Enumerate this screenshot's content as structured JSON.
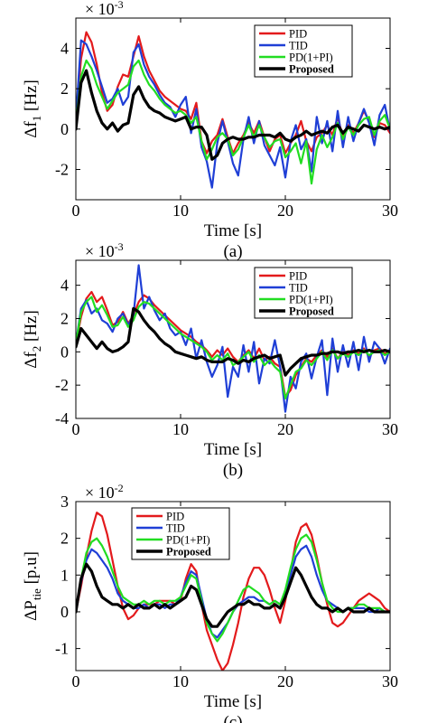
{
  "colors": {
    "PID": "#e31a1c",
    "TID": "#1f3fd6",
    "PD(1+PI)": "#22dd22",
    "Proposed": "#000000"
  },
  "chart_data": [
    {
      "type": "line",
      "caption": "(a)",
      "xlabel": "Time [s]",
      "ylabel_main": "Δf",
      "ylabel_sub": "1",
      "ylabel_unit": " [Hz]",
      "multiplier_base": "× 10",
      "multiplier_exp": "-3",
      "xlim": [
        0,
        30
      ],
      "ylim": [
        -3.5,
        5.5
      ],
      "xticks": [
        0,
        10,
        20,
        30
      ],
      "yticks": [
        -2,
        0,
        2,
        4
      ],
      "legend_position": "top-right",
      "x": [
        0,
        0.5,
        1,
        1.5,
        2,
        2.5,
        3,
        3.5,
        4,
        4.5,
        5,
        5.5,
        6,
        6.5,
        7,
        7.5,
        8,
        8.5,
        9,
        9.5,
        10,
        10.5,
        11,
        11.5,
        12,
        12.5,
        13,
        13.5,
        14,
        14.5,
        15,
        15.5,
        16,
        16.5,
        17,
        17.5,
        18,
        18.5,
        19,
        19.5,
        20,
        20.5,
        21,
        21.5,
        22,
        22.5,
        23,
        23.5,
        24,
        24.5,
        25,
        25.5,
        26,
        26.5,
        27,
        27.5,
        28,
        28.5,
        29,
        29.5,
        30
      ],
      "series": [
        {
          "name": "PID",
          "values": [
            0.5,
            3.5,
            4.8,
            4.3,
            3.2,
            1.8,
            0.9,
            1.2,
            2.1,
            2.7,
            2.6,
            3.6,
            4.6,
            3.6,
            2.9,
            2.4,
            1.9,
            1.6,
            1.4,
            1.2,
            1.0,
            0.9,
            0.5,
            1.3,
            -0.6,
            -1.2,
            -0.6,
            -0.3,
            0.5,
            -0.4,
            -1.2,
            -0.7,
            -0.3,
            0.3,
            -0.2,
            0.4,
            -0.4,
            -1.1,
            -0.5,
            -0.3,
            -1.2,
            -0.7,
            -0.3,
            0.4,
            -0.6,
            -1.1,
            -0.4,
            -0.2,
            0.2,
            -0.3,
            0.6,
            -0.4,
            0.2,
            -0.2,
            0.3,
            0.9,
            0.4,
            -0.4,
            0.3,
            0.2,
            -0.2
          ]
        },
        {
          "name": "TID",
          "values": [
            0.5,
            4.4,
            4.2,
            3.6,
            2.9,
            2.1,
            1.3,
            1.5,
            2.0,
            1.2,
            1.6,
            3.8,
            4.2,
            3.2,
            2.6,
            2.2,
            1.7,
            1.3,
            1.1,
            0.6,
            1.2,
            1.6,
            -0.2,
            1.0,
            -0.9,
            -1.6,
            -2.9,
            -0.7,
            0.4,
            -0.6,
            -1.7,
            -2.3,
            -0.5,
            0.6,
            -0.7,
            0.4,
            -0.8,
            -1.3,
            -1.8,
            -0.9,
            -2.4,
            -0.6,
            0.2,
            -1.0,
            -0.5,
            -2.1,
            0.6,
            -0.7,
            0.4,
            -1.1,
            0.9,
            -0.9,
            0.6,
            -0.6,
            0.3,
            1.0,
            0.3,
            -0.8,
            0.7,
            1.2,
            -0.1
          ]
        },
        {
          "name": "PD(1+PI)",
          "values": [
            0.3,
            2.6,
            3.4,
            3.0,
            2.2,
            1.6,
            1.0,
            1.4,
            1.8,
            2.0,
            2.2,
            3.1,
            3.4,
            2.7,
            2.2,
            1.9,
            1.5,
            1.2,
            1.0,
            0.8,
            0.9,
            0.7,
            0.3,
            0.6,
            -0.6,
            -1.5,
            -1.0,
            -0.4,
            -0.2,
            -0.5,
            -1.3,
            -1.0,
            -0.4,
            0.2,
            -0.4,
            0.2,
            -0.4,
            -0.9,
            -0.6,
            -0.5,
            -1.4,
            -1.1,
            -0.7,
            -1.7,
            -0.6,
            -2.7,
            -1.0,
            -0.3,
            -0.9,
            -0.4,
            0.3,
            -0.5,
            0.1,
            -0.3,
            0.2,
            0.5,
            0.6,
            -0.3,
            0.4,
            0.7,
            0.0
          ]
        },
        {
          "name": "Proposed",
          "values": [
            0.0,
            2.3,
            2.9,
            1.8,
            0.9,
            0.3,
            0.0,
            0.3,
            -0.1,
            0.2,
            0.3,
            1.7,
            2.1,
            1.5,
            1.1,
            0.9,
            0.8,
            0.6,
            0.5,
            0.4,
            0.5,
            0.6,
            0.0,
            0.1,
            0.1,
            -0.3,
            -1.5,
            -1.3,
            -0.7,
            -0.5,
            -0.4,
            -0.5,
            -0.5,
            -0.4,
            -0.4,
            -0.3,
            -0.3,
            -0.3,
            -0.4,
            -0.2,
            -0.5,
            -0.6,
            -0.4,
            -0.3,
            -0.1,
            -0.3,
            -0.2,
            -0.1,
            -0.2,
            0.1,
            0.2,
            -0.2,
            0.1,
            0.0,
            -0.1,
            0.2,
            0.1,
            0.0,
            0.1,
            0.0,
            0.1
          ]
        }
      ]
    },
    {
      "type": "line",
      "caption": "(b)",
      "xlabel": "Time [s]",
      "ylabel_main": "Δf",
      "ylabel_sub": "2",
      "ylabel_unit": " [Hz]",
      "multiplier_base": "× 10",
      "multiplier_exp": "-3",
      "xlim": [
        0,
        30
      ],
      "ylim": [
        -4,
        5.5
      ],
      "xticks": [
        0,
        10,
        20,
        30
      ],
      "yticks": [
        -4,
        -2,
        0,
        2,
        4
      ],
      "legend_position": "top-right",
      "x": [
        0,
        0.5,
        1,
        1.5,
        2,
        2.5,
        3,
        3.5,
        4,
        4.5,
        5,
        5.5,
        6,
        6.5,
        7,
        7.5,
        8,
        8.5,
        9,
        9.5,
        10,
        10.5,
        11,
        11.5,
        12,
        12.5,
        13,
        13.5,
        14,
        14.5,
        15,
        15.5,
        16,
        16.5,
        17,
        17.5,
        18,
        18.5,
        19,
        19.5,
        20,
        20.5,
        21,
        21.5,
        22,
        22.5,
        23,
        23.5,
        24,
        24.5,
        25,
        25.5,
        26,
        26.5,
        27,
        27.5,
        28,
        28.5,
        29,
        29.5,
        30
      ],
      "series": [
        {
          "name": "PID",
          "values": [
            0.5,
            2.1,
            3.2,
            3.6,
            3.0,
            3.3,
            2.5,
            1.6,
            1.8,
            2.4,
            1.7,
            2.2,
            3.0,
            3.4,
            3.2,
            2.8,
            2.5,
            2.2,
            1.9,
            1.6,
            1.3,
            1.1,
            0.9,
            0.6,
            0.4,
            0.1,
            -0.3,
            0.1,
            -0.2,
            0.2,
            -0.3,
            -0.6,
            -0.2,
            0.1,
            -0.4,
            0.2,
            -0.5,
            -0.3,
            -0.7,
            -0.9,
            -2.7,
            -2.3,
            -1.4,
            -0.9,
            -0.4,
            -0.6,
            -0.2,
            0.1,
            -0.3,
            0.2,
            -0.4,
            0.0,
            -0.2,
            0.1,
            -0.1,
            0.2,
            -0.3,
            0.1,
            0.2,
            -0.1,
            0.0
          ]
        },
        {
          "name": "TID",
          "values": [
            0.5,
            2.6,
            3.1,
            2.3,
            2.6,
            1.9,
            1.7,
            1.2,
            2.0,
            2.3,
            1.6,
            2.2,
            5.2,
            2.6,
            3.3,
            2.5,
            1.9,
            2.3,
            1.4,
            1.0,
            1.2,
            0.4,
            1.4,
            -0.4,
            0.7,
            -0.6,
            -1.5,
            -0.8,
            0.3,
            -2.7,
            -0.9,
            -1.5,
            0.4,
            -1.2,
            0.6,
            -1.9,
            -0.4,
            -0.7,
            0.7,
            -0.9,
            -3.6,
            -1.5,
            -2.2,
            -0.6,
            -0.1,
            -1.6,
            -0.3,
            0.7,
            -2.6,
            0.8,
            -1.2,
            0.4,
            -0.9,
            0.6,
            -1.1,
            0.9,
            -0.6,
            0.6,
            0.2,
            -0.7,
            0.2
          ]
        },
        {
          "name": "PD(1+PI)",
          "values": [
            0.5,
            2.4,
            3.0,
            3.3,
            2.4,
            2.8,
            2.2,
            1.5,
            1.6,
            2.1,
            1.5,
            1.9,
            2.7,
            3.0,
            2.9,
            2.6,
            2.3,
            2.0,
            1.7,
            1.4,
            1.1,
            0.9,
            0.7,
            0.5,
            0.3,
            0.0,
            -0.5,
            -0.2,
            -0.5,
            -0.1,
            -0.8,
            -0.6,
            -0.3,
            0.0,
            -0.6,
            -0.2,
            -0.8,
            -0.5,
            -0.9,
            -1.2,
            -2.8,
            -2.0,
            -1.2,
            -1.0,
            -0.5,
            -0.8,
            -0.4,
            0.0,
            -0.5,
            0.1,
            -0.4,
            -0.1,
            -0.3,
            0.0,
            -0.2,
            0.1,
            -0.2,
            0.0,
            0.1,
            -0.2,
            0.0
          ]
        },
        {
          "name": "Proposed",
          "values": [
            0.3,
            1.4,
            1.0,
            0.6,
            0.2,
            0.6,
            0.2,
            0.0,
            0.1,
            0.3,
            0.6,
            2.6,
            2.4,
            1.9,
            1.5,
            1.2,
            0.8,
            0.5,
            0.3,
            0.0,
            -0.1,
            -0.2,
            -0.3,
            -0.4,
            -0.3,
            -0.5,
            -0.6,
            -0.6,
            -0.6,
            -0.4,
            -0.5,
            -0.7,
            -0.5,
            -0.6,
            -0.4,
            -0.3,
            -0.2,
            -0.4,
            -0.3,
            -0.2,
            -1.4,
            -1.0,
            -0.7,
            -0.4,
            -0.3,
            -0.2,
            -0.2,
            -0.1,
            -0.1,
            0.0,
            0.0,
            -0.1,
            0.0,
            0.0,
            0.1,
            0.0,
            0.1,
            0.0,
            0.0,
            0.1,
            0.0
          ]
        }
      ]
    },
    {
      "type": "line",
      "caption": "(c)",
      "xlabel": "Time [s]",
      "ylabel_main": "ΔP",
      "ylabel_sub": "tie",
      "ylabel_unit": " [p.u]",
      "multiplier_base": "× 10",
      "multiplier_exp": "-2",
      "xlim": [
        0,
        30
      ],
      "ylim": [
        -1.6,
        3.0
      ],
      "xticks": [
        0,
        10,
        20,
        30
      ],
      "yticks": [
        -1,
        0,
        1,
        2,
        3
      ],
      "legend_position": "top-center",
      "x": [
        0,
        0.5,
        1,
        1.5,
        2,
        2.5,
        3,
        3.5,
        4,
        4.5,
        5,
        5.5,
        6,
        6.5,
        7,
        7.5,
        8,
        8.5,
        9,
        9.5,
        10,
        10.5,
        11,
        11.5,
        12,
        12.5,
        13,
        13.5,
        14,
        14.5,
        15,
        15.5,
        16,
        16.5,
        17,
        17.5,
        18,
        18.5,
        19,
        19.5,
        20,
        20.5,
        21,
        21.5,
        22,
        22.5,
        23,
        23.5,
        24,
        24.5,
        25,
        25.5,
        26,
        26.5,
        27,
        27.5,
        28,
        28.5,
        29,
        29.5,
        30
      ],
      "series": [
        {
          "name": "PID",
          "values": [
            0.0,
            0.7,
            1.5,
            2.2,
            2.7,
            2.6,
            2.1,
            1.4,
            0.7,
            0.1,
            -0.2,
            -0.1,
            0.1,
            0.2,
            0.2,
            0.2,
            0.3,
            0.3,
            0.3,
            0.2,
            0.3,
            0.9,
            1.3,
            1.1,
            0.2,
            -0.5,
            -0.9,
            -1.3,
            -1.6,
            -1.4,
            -0.9,
            -0.3,
            0.4,
            0.9,
            1.2,
            1.2,
            1.0,
            0.6,
            0.1,
            -0.3,
            0.3,
            1.1,
            1.9,
            2.3,
            2.4,
            2.1,
            1.5,
            0.8,
            0.2,
            -0.3,
            -0.4,
            -0.3,
            -0.1,
            0.1,
            0.3,
            0.4,
            0.5,
            0.4,
            0.3,
            0.1,
            0.0
          ]
        },
        {
          "name": "TID",
          "values": [
            0.0,
            0.8,
            1.4,
            1.7,
            1.6,
            1.4,
            1.2,
            0.9,
            0.5,
            0.3,
            0.2,
            0.1,
            0.1,
            0.2,
            0.1,
            0.2,
            0.2,
            0.1,
            0.2,
            0.2,
            0.4,
            0.8,
            1.1,
            1.0,
            0.4,
            -0.2,
            -0.6,
            -0.7,
            -0.5,
            -0.3,
            0.0,
            0.2,
            0.3,
            0.4,
            0.4,
            0.3,
            0.3,
            0.2,
            0.3,
            0.2,
            0.5,
            1.0,
            1.5,
            1.7,
            1.8,
            1.5,
            1.0,
            0.6,
            0.3,
            0.2,
            0.1,
            0.0,
            0.1,
            0.1,
            0.1,
            0.1,
            0.0,
            0.0,
            0.1,
            0.0,
            0.0
          ]
        },
        {
          "name": "PD(1+PI)",
          "values": [
            0.0,
            0.9,
            1.6,
            1.9,
            2.0,
            1.8,
            1.5,
            1.1,
            0.7,
            0.4,
            0.3,
            0.2,
            0.2,
            0.3,
            0.2,
            0.3,
            0.3,
            0.2,
            0.3,
            0.3,
            0.4,
            0.7,
            1.0,
            0.9,
            0.3,
            -0.3,
            -0.6,
            -0.8,
            -0.6,
            -0.3,
            0.0,
            0.3,
            0.6,
            0.7,
            0.6,
            0.5,
            0.3,
            0.2,
            0.3,
            0.2,
            0.6,
            1.2,
            1.7,
            2.0,
            2.1,
            1.9,
            1.4,
            0.8,
            0.3,
            0.1,
            0.0,
            0.0,
            0.1,
            0.1,
            0.2,
            0.2,
            0.1,
            0.1,
            0.1,
            0.0,
            0.0
          ]
        },
        {
          "name": "Proposed",
          "values": [
            0.0,
            0.9,
            1.3,
            1.1,
            0.7,
            0.4,
            0.3,
            0.2,
            0.2,
            0.1,
            0.2,
            0.1,
            0.2,
            0.1,
            0.1,
            0.2,
            0.1,
            0.2,
            0.1,
            0.2,
            0.3,
            0.4,
            0.7,
            0.6,
            0.2,
            -0.2,
            -0.4,
            -0.4,
            -0.2,
            0.0,
            0.1,
            0.2,
            0.2,
            0.3,
            0.2,
            0.2,
            0.1,
            0.1,
            0.2,
            0.1,
            0.4,
            0.8,
            1.2,
            1.0,
            0.7,
            0.4,
            0.2,
            0.1,
            0.1,
            0.0,
            0.1,
            0.0,
            0.1,
            0.0,
            0.0,
            0.0,
            0.1,
            0.0,
            0.0,
            0.0,
            0.0
          ]
        }
      ]
    }
  ]
}
